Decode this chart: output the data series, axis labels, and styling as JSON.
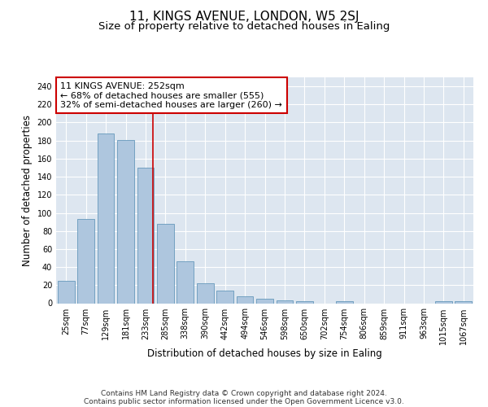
{
  "title": "11, KINGS AVENUE, LONDON, W5 2SJ",
  "subtitle": "Size of property relative to detached houses in Ealing",
  "xlabel": "Distribution of detached houses by size in Ealing",
  "ylabel": "Number of detached properties",
  "categories": [
    "25sqm",
    "77sqm",
    "129sqm",
    "181sqm",
    "233sqm",
    "285sqm",
    "338sqm",
    "390sqm",
    "442sqm",
    "494sqm",
    "546sqm",
    "598sqm",
    "650sqm",
    "702sqm",
    "754sqm",
    "806sqm",
    "859sqm",
    "911sqm",
    "963sqm",
    "1015sqm",
    "1067sqm"
  ],
  "values": [
    25,
    93,
    188,
    181,
    150,
    88,
    46,
    22,
    14,
    8,
    5,
    3,
    2,
    0,
    2,
    0,
    0,
    0,
    0,
    2,
    2
  ],
  "bar_color": "#aec6de",
  "bar_edge_color": "#6699bb",
  "vline_color": "#cc0000",
  "vline_pos": 4.37,
  "annotation_text": "11 KINGS AVENUE: 252sqm\n← 68% of detached houses are smaller (555)\n32% of semi-detached houses are larger (260) →",
  "annotation_box_color": "#ffffff",
  "annotation_box_edge": "#cc0000",
  "ylim": [
    0,
    250
  ],
  "yticks": [
    0,
    20,
    40,
    60,
    80,
    100,
    120,
    140,
    160,
    180,
    200,
    220,
    240
  ],
  "background_color": "#dde6f0",
  "grid_color": "#ffffff",
  "footer": "Contains HM Land Registry data © Crown copyright and database right 2024.\nContains public sector information licensed under the Open Government Licence v3.0.",
  "title_fontsize": 11,
  "subtitle_fontsize": 9.5,
  "axis_label_fontsize": 8.5,
  "tick_fontsize": 7,
  "annotation_fontsize": 8,
  "footer_fontsize": 6.5
}
